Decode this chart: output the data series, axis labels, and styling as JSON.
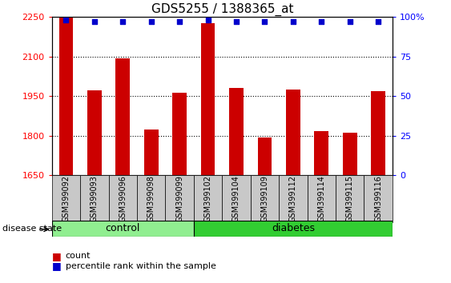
{
  "title": "GDS5255 / 1388365_at",
  "samples": [
    "GSM399092",
    "GSM399093",
    "GSM399096",
    "GSM399098",
    "GSM399099",
    "GSM399102",
    "GSM399104",
    "GSM399109",
    "GSM399112",
    "GSM399114",
    "GSM399115",
    "GSM399116"
  ],
  "counts": [
    2248,
    1972,
    2093,
    1825,
    1963,
    2228,
    1980,
    1795,
    1975,
    1818,
    1812,
    1968
  ],
  "percentile_ranks": [
    98,
    97,
    97,
    97,
    97,
    98,
    97,
    97,
    97,
    97,
    97,
    97
  ],
  "groups": [
    "control",
    "control",
    "control",
    "control",
    "control",
    "diabetes",
    "diabetes",
    "diabetes",
    "diabetes",
    "diabetes",
    "diabetes",
    "diabetes"
  ],
  "ylim_left": [
    1650,
    2250
  ],
  "ylim_right": [
    0,
    100
  ],
  "yticks_left": [
    1650,
    1800,
    1950,
    2100,
    2250
  ],
  "yticks_right": [
    0,
    25,
    50,
    75,
    100
  ],
  "bar_color": "#CC0000",
  "dot_color": "#0000CC",
  "control_color": "#90EE90",
  "diabetes_color": "#32CD32",
  "group_label_bg": "#C8C8C8",
  "bar_width": 0.5,
  "figsize": [
    5.63,
    3.54
  ],
  "dpi": 100,
  "legend_count_label": "count",
  "legend_pct_label": "percentile rank within the sample",
  "disease_state_label": "disease state"
}
